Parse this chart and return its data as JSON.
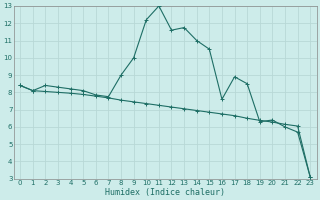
{
  "xlabel": "Humidex (Indice chaleur)",
  "background_color": "#cdecea",
  "grid_color": "#b8d8d6",
  "line_color": "#1e6e65",
  "xlim": [
    -0.5,
    23.5
  ],
  "ylim": [
    3,
    13
  ],
  "xticks": [
    0,
    1,
    2,
    3,
    4,
    5,
    6,
    7,
    8,
    9,
    10,
    11,
    12,
    13,
    14,
    15,
    16,
    17,
    18,
    19,
    20,
    21,
    22,
    23
  ],
  "yticks": [
    3,
    4,
    5,
    6,
    7,
    8,
    9,
    10,
    11,
    12,
    13
  ],
  "line1_x": [
    0,
    1,
    2,
    3,
    4,
    5,
    6,
    7,
    8,
    9,
    10,
    11,
    12,
    13,
    14,
    15,
    16,
    17,
    18,
    19,
    20,
    21,
    22,
    23
  ],
  "line1_y": [
    8.4,
    8.1,
    8.4,
    8.3,
    8.2,
    8.1,
    7.85,
    7.75,
    9.0,
    10.0,
    12.2,
    13.0,
    11.6,
    11.75,
    11.0,
    10.5,
    7.6,
    8.9,
    8.5,
    6.3,
    6.4,
    6.0,
    5.7,
    3.1
  ],
  "line2_x": [
    0,
    1,
    2,
    3,
    4,
    5,
    6,
    7,
    8,
    9,
    10,
    11,
    12,
    13,
    14,
    15,
    16,
    17,
    18,
    19,
    20,
    21,
    22,
    23
  ],
  "line2_y": [
    8.4,
    8.1,
    8.05,
    8.0,
    7.95,
    7.88,
    7.78,
    7.68,
    7.55,
    7.45,
    7.35,
    7.25,
    7.15,
    7.05,
    6.95,
    6.85,
    6.75,
    6.65,
    6.5,
    6.38,
    6.28,
    6.15,
    6.05,
    3.1
  ]
}
